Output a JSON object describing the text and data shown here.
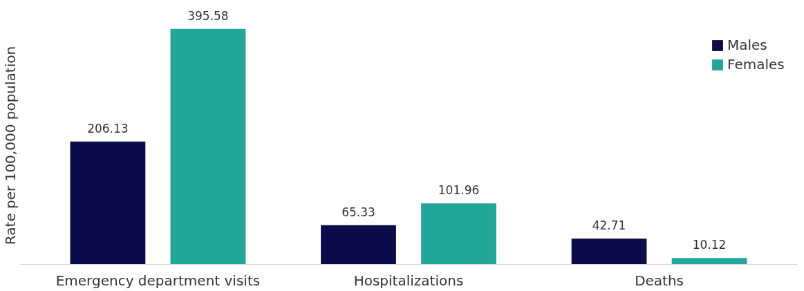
{
  "chart_data": {
    "type": "bar",
    "ylabel": "Rate per 100,000 population",
    "categories": [
      "Emergency department visits",
      "Hospitalizations",
      "Deaths"
    ],
    "series": [
      {
        "name": "Males",
        "color": "#0c0c4a",
        "values": [
          206.13,
          65.33,
          42.71
        ]
      },
      {
        "name": "Females",
        "color": "#22a698",
        "values": [
          395.58,
          101.96,
          10.12
        ]
      }
    ],
    "data_labels": true,
    "legend": "top right",
    "grid": false
  }
}
